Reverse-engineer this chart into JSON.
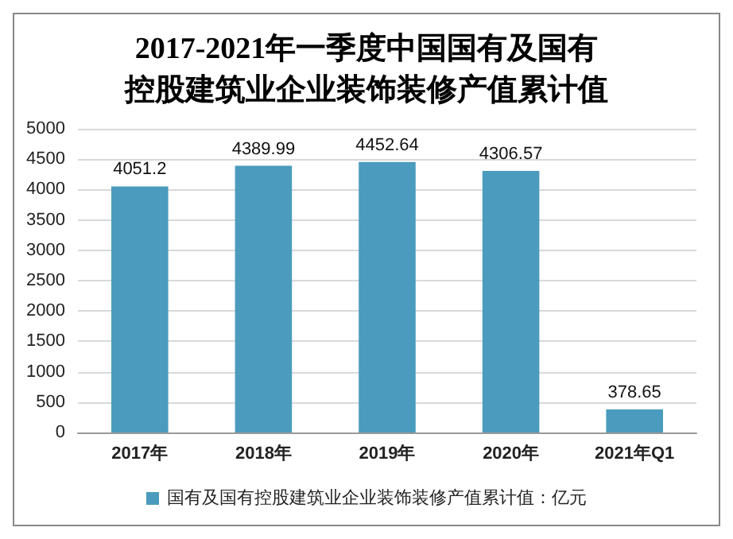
{
  "chart_data": {
    "type": "bar",
    "title": "2017-2021年一季度中国国有及国有控股建筑业企业装饰装修产值累计值",
    "categories": [
      "2017年",
      "2018年",
      "2019年",
      "2020年",
      "2021年Q1"
    ],
    "series": [
      {
        "name": "国有及国有控股建筑业企业装饰装修产值累计值：亿元",
        "color": "#4a9bbd",
        "values": [
          4051.2,
          4389.99,
          4452.64,
          4306.57,
          378.65
        ]
      }
    ],
    "ylim": [
      0,
      5000
    ],
    "yticks": [
      0,
      500,
      1000,
      1500,
      2000,
      2500,
      3000,
      3500,
      4000,
      4500,
      5000
    ],
    "grid": "y",
    "legend": "bottom",
    "data_labels": true
  }
}
